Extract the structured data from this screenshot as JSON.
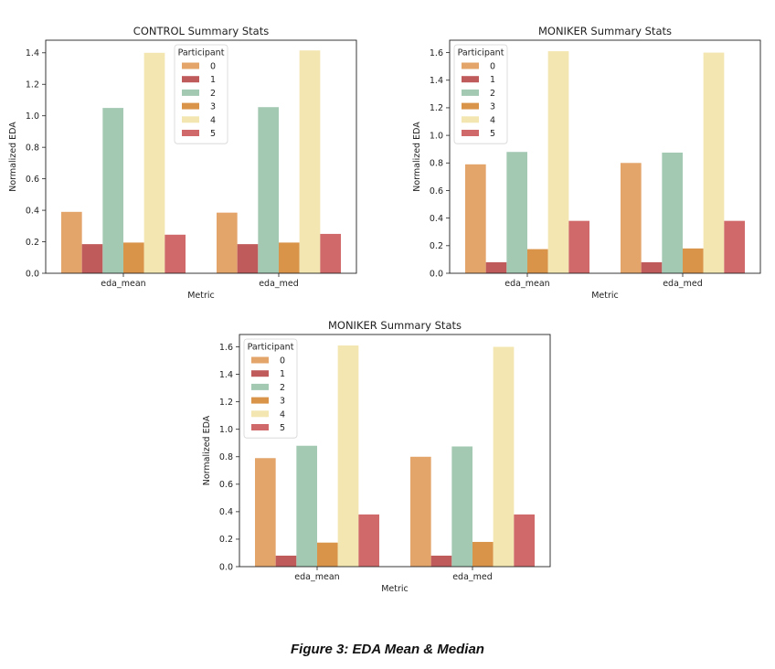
{
  "caption": "Figure 3: EDA Mean & Median",
  "colors": {
    "0": "#e3a56a",
    "1": "#c05b5b",
    "2": "#a4c9b3",
    "3": "#d9944a",
    "4": "#f3e6b0",
    "5": "#d06a6a"
  },
  "chart_data": [
    {
      "type": "bar",
      "title": "CONTROL Summary Stats",
      "xlabel": "Metric",
      "ylabel": "Normalized EDA",
      "ylim": [
        0,
        1.48
      ],
      "yticks": [
        "0.0",
        "0.2",
        "0.4",
        "0.6",
        "0.8",
        "1.0",
        "1.2",
        "1.4"
      ],
      "categories": [
        "eda_mean",
        "eda_med"
      ],
      "legend_title": "Participant",
      "legend_position": "top-center",
      "series": [
        {
          "name": "0",
          "values": [
            0.39,
            0.385
          ]
        },
        {
          "name": "1",
          "values": [
            0.185,
            0.185
          ]
        },
        {
          "name": "2",
          "values": [
            1.05,
            1.055
          ]
        },
        {
          "name": "3",
          "values": [
            0.195,
            0.195
          ]
        },
        {
          "name": "4",
          "values": [
            1.4,
            1.415
          ]
        },
        {
          "name": "5",
          "values": [
            0.245,
            0.25
          ]
        }
      ]
    },
    {
      "type": "bar",
      "title": "MONIKER Summary Stats",
      "xlabel": "Metric",
      "ylabel": "Normalized EDA",
      "ylim": [
        0,
        1.69
      ],
      "yticks": [
        "0.0",
        "0.2",
        "0.4",
        "0.6",
        "0.8",
        "1.0",
        "1.2",
        "1.4",
        "1.6"
      ],
      "categories": [
        "eda_mean",
        "eda_med"
      ],
      "legend_title": "Participant",
      "legend_position": "top-left",
      "series": [
        {
          "name": "0",
          "values": [
            0.79,
            0.8
          ]
        },
        {
          "name": "1",
          "values": [
            0.08,
            0.08
          ]
        },
        {
          "name": "2",
          "values": [
            0.88,
            0.875
          ]
        },
        {
          "name": "3",
          "values": [
            0.175,
            0.18
          ]
        },
        {
          "name": "4",
          "values": [
            1.61,
            1.6
          ]
        },
        {
          "name": "5",
          "values": [
            0.38,
            0.38
          ]
        }
      ]
    },
    {
      "type": "bar",
      "title": "MONIKER Summary Stats",
      "xlabel": "Metric",
      "ylabel": "Normalized EDA",
      "ylim": [
        0,
        1.69
      ],
      "yticks": [
        "0.0",
        "0.2",
        "0.4",
        "0.6",
        "0.8",
        "1.0",
        "1.2",
        "1.4",
        "1.6"
      ],
      "categories": [
        "eda_mean",
        "eda_med"
      ],
      "legend_title": "Participant",
      "legend_position": "top-left",
      "series": [
        {
          "name": "0",
          "values": [
            0.79,
            0.8
          ]
        },
        {
          "name": "1",
          "values": [
            0.08,
            0.08
          ]
        },
        {
          "name": "2",
          "values": [
            0.88,
            0.875
          ]
        },
        {
          "name": "3",
          "values": [
            0.175,
            0.18
          ]
        },
        {
          "name": "4",
          "values": [
            1.61,
            1.6
          ]
        },
        {
          "name": "5",
          "values": [
            0.38,
            0.38
          ]
        }
      ]
    }
  ]
}
